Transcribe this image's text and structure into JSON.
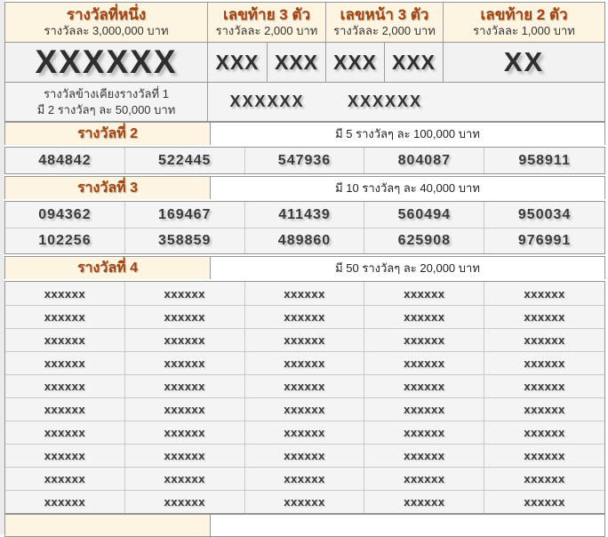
{
  "colors": {
    "accent_red": "#a3430e",
    "cream_header_bg": "#fdf5e1",
    "row_gray_bg": "#f4f4f4",
    "number_text": "#3a3a3a",
    "border_dark": "#949494",
    "border_light": "#c9c9c9"
  },
  "prize_table": {
    "header_columns": [
      {
        "title": "รางวัลที่หนึ่ง",
        "subtitle": "รางวัลละ 3,000,000 บาท"
      },
      {
        "title": "เลขท้าย 3 ตัว",
        "subtitle": "รางวัลละ 2,000 บาท"
      },
      {
        "title": "เลขหน้า 3 ตัว",
        "subtitle": "รางวัลละ 2,000 บาท"
      },
      {
        "title": "เลขท้าย 2 ตัว",
        "subtitle": "รางวัลละ 1,000 บาท"
      }
    ],
    "winning_numbers": {
      "first_prize": "XXXXXX",
      "last3_digits": [
        "XXX",
        "XXX"
      ],
      "front3_digits": [
        "XXX",
        "XXX"
      ],
      "last2_digits": "XX"
    },
    "adjacent_prize": {
      "label_line1": "รางวัลข้างเคียงรางวัลที่ 1",
      "label_line2": "มี 2 รางวัลๆ ละ 50,000 บาท",
      "values": [
        "XXXXXX",
        "XXXXXX"
      ]
    },
    "sections": [
      {
        "title": "รางวัลที่ 2",
        "subtitle": "มี 5 รางวัลๆ ละ 100,000 บาท",
        "rows": [
          [
            "484842",
            "522445",
            "547936",
            "804087",
            "958911"
          ]
        ]
      },
      {
        "title": "รางวัลที่ 3",
        "subtitle": "มี 10 รางวัลๆ ละ 40,000 บาท",
        "rows": [
          [
            "094362",
            "169467",
            "411439",
            "560494",
            "950034"
          ],
          [
            "102256",
            "358859",
            "489860",
            "625908",
            "976991"
          ]
        ]
      },
      {
        "title": "รางวัลที่ 4",
        "subtitle": "มี 50 รางวัลๆ ละ 20,000 บาท",
        "rows": [
          [
            "xxxxxx",
            "xxxxxx",
            "xxxxxx",
            "xxxxxx",
            "xxxxxx"
          ],
          [
            "xxxxxx",
            "xxxxxx",
            "xxxxxx",
            "xxxxxx",
            "xxxxxx"
          ],
          [
            "xxxxxx",
            "xxxxxx",
            "xxxxxx",
            "xxxxxx",
            "xxxxxx"
          ],
          [
            "xxxxxx",
            "xxxxxx",
            "xxxxxx",
            "xxxxxx",
            "xxxxxx"
          ],
          [
            "xxxxxx",
            "xxxxxx",
            "xxxxxx",
            "xxxxxx",
            "xxxxxx"
          ],
          [
            "xxxxxx",
            "xxxxxx",
            "xxxxxx",
            "xxxxxx",
            "xxxxxx"
          ],
          [
            "xxxxxx",
            "xxxxxx",
            "xxxxxx",
            "xxxxxx",
            "xxxxxx"
          ],
          [
            "xxxxxx",
            "xxxxxx",
            "xxxxxx",
            "xxxxxx",
            "xxxxxx"
          ],
          [
            "xxxxxx",
            "xxxxxx",
            "xxxxxx",
            "xxxxxx",
            "xxxxxx"
          ],
          [
            "xxxxxx",
            "xxxxxx",
            "xxxxxx",
            "xxxxxx",
            "xxxxxx"
          ]
        ]
      }
    ]
  }
}
